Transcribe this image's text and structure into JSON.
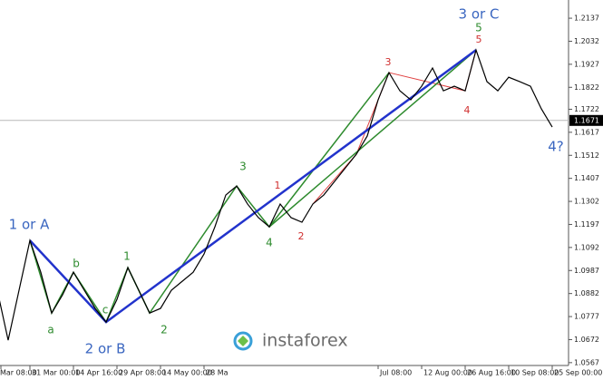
{
  "chart_data": {
    "type": "line",
    "color": "#000000",
    "categories": [
      "Mar 08:00",
      null,
      null,
      "31 Mar 00:00",
      null,
      null,
      null,
      "14 Apr 16:00",
      null,
      null,
      null,
      "29 Apr 08:00",
      null,
      null,
      null,
      "14 May 00:00",
      null,
      null,
      null,
      "28 Ma",
      null,
      null,
      null,
      null,
      null,
      null,
      null,
      null,
      null,
      null,
      null,
      null,
      null,
      null,
      null,
      "Jul 08:00",
      null,
      null,
      null,
      "12 Aug 00:00",
      null,
      null,
      null,
      "26 Aug 16:00",
      null,
      null,
      null,
      "10 Sep 08:00",
      null,
      null,
      null,
      "25 Sep 00:00"
    ],
    "values": [
      1.0897,
      1.0669,
      1.0897,
      1.1124,
      1.0979,
      1.0793,
      1.0876,
      1.0979,
      1.0897,
      1.0814,
      1.0752,
      1.0855,
      1.1,
      1.0897,
      1.0793,
      1.0814,
      1.0897,
      1.0938,
      1.0979,
      1.1062,
      1.1186,
      1.1331,
      1.1372,
      1.129,
      1.1228,
      1.1186,
      1.129,
      1.1228,
      1.1207,
      1.129,
      1.1331,
      1.1393,
      1.1455,
      1.1517,
      1.16,
      1.1765,
      1.1889,
      1.1806,
      1.1765,
      1.1827,
      1.191,
      1.1806,
      1.1827,
      1.1806,
      1.1992,
      1.1848,
      1.1806,
      1.1868,
      1.1848,
      1.1827,
      1.1724,
      1.1641
    ],
    "ylim": [
      1.0554,
      1.222
    ],
    "yticks": [
      1.2137,
      1.2032,
      1.1927,
      1.1822,
      1.1722,
      1.1617,
      1.1512,
      1.1407,
      1.1302,
      1.1197,
      1.1092,
      1.0987,
      1.0882,
      1.0777,
      1.0672,
      1.0567
    ],
    "current_price": 1.1671,
    "annotations": [
      {
        "text": "1 or A",
        "color": "#3a66c0"
      },
      {
        "text": "a",
        "color": "#2e8b2e"
      },
      {
        "text": "b",
        "color": "#2e8b2e"
      },
      {
        "text": "c",
        "color": "#2e8b2e"
      },
      {
        "text": "2 or B",
        "color": "#3a66c0"
      },
      {
        "text": "1",
        "color": "#2e8b2e"
      },
      {
        "text": "2",
        "color": "#2e8b2e"
      },
      {
        "text": "3",
        "color": "#2e8b2e"
      },
      {
        "text": "4",
        "color": "#2e8b2e"
      },
      {
        "text": "1",
        "color": "#d03030"
      },
      {
        "text": "2",
        "color": "#d03030"
      },
      {
        "text": "3",
        "color": "#d03030"
      },
      {
        "text": "4",
        "color": "#d03030"
      },
      {
        "text": "5",
        "color": "#d03030"
      },
      {
        "text": "5",
        "color": "#2e8b2e"
      },
      {
        "text": "3 or C",
        "color": "#3a66c0"
      },
      {
        "text": "4?",
        "color": "#3a66c0"
      }
    ],
    "watermark": "instaforex"
  }
}
